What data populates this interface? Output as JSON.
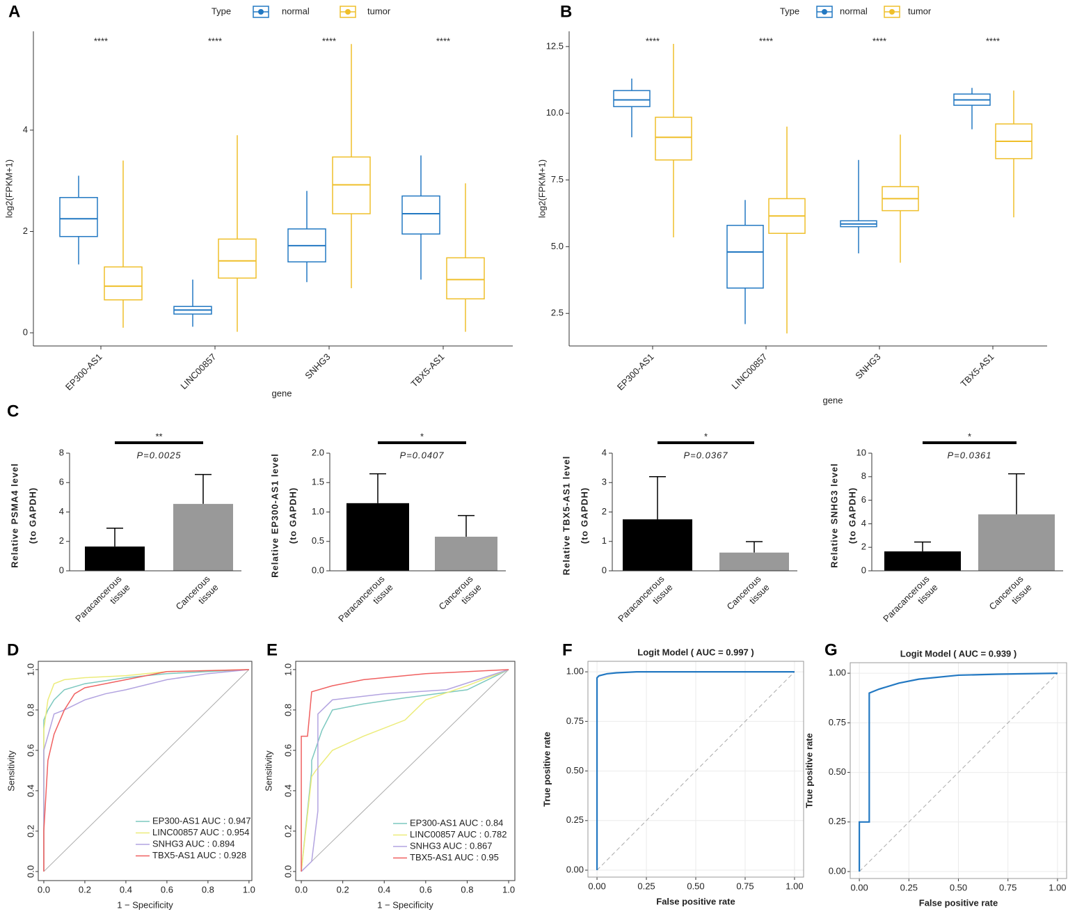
{
  "chart_data": [
    {
      "type": "box",
      "panel": "A",
      "legend_title": "Type",
      "xlabel": "gene",
      "ylabel": "log2(FPKM+1)",
      "categories": [
        "EP300-AS1",
        "LINC00857",
        "SNHG3",
        "TBX5-AS1"
      ],
      "significance": [
        "****",
        "****",
        "****",
        "****"
      ],
      "series": [
        {
          "name": "normal",
          "color": "#2278c2",
          "boxes": [
            {
              "min": 1.35,
              "q1": 1.9,
              "median": 2.25,
              "q3": 2.67,
              "max": 3.1
            },
            {
              "min": 0.12,
              "q1": 0.37,
              "median": 0.45,
              "q3": 0.52,
              "max": 1.05
            },
            {
              "min": 1.0,
              "q1": 1.4,
              "median": 1.72,
              "q3": 2.05,
              "max": 2.8
            },
            {
              "min": 1.05,
              "q1": 1.95,
              "median": 2.35,
              "q3": 2.7,
              "max": 3.5
            }
          ]
        },
        {
          "name": "tumor",
          "color": "#efbf2a",
          "boxes": [
            {
              "min": 0.1,
              "q1": 0.65,
              "median": 0.92,
              "q3": 1.3,
              "max": 3.4
            },
            {
              "min": 0.02,
              "q1": 1.08,
              "median": 1.42,
              "q3": 1.85,
              "max": 3.9
            },
            {
              "min": 0.88,
              "q1": 2.35,
              "median": 2.92,
              "q3": 3.47,
              "max": 5.7
            },
            {
              "min": 0.02,
              "q1": 0.67,
              "median": 1.05,
              "q3": 1.48,
              "max": 2.95
            }
          ]
        }
      ],
      "ylim": [
        -0.26,
        5.95
      ],
      "yticks": [
        0,
        2,
        4
      ]
    },
    {
      "type": "box",
      "panel": "B",
      "legend_title": "Type",
      "xlabel": "gene",
      "ylabel": "log2(FPKM+1)",
      "categories": [
        "EP300-AS1",
        "LINC00857",
        "SNHG3",
        "TBX5-AS1"
      ],
      "significance": [
        "****",
        "****",
        "****",
        "****"
      ],
      "series": [
        {
          "name": "normal",
          "color": "#2278c2",
          "boxes": [
            {
              "min": 9.1,
              "q1": 10.25,
              "median": 10.5,
              "q3": 10.85,
              "max": 11.3
            },
            {
              "min": 2.1,
              "q1": 3.45,
              "median": 4.8,
              "q3": 5.8,
              "max": 6.75
            },
            {
              "min": 4.75,
              "q1": 5.75,
              "median": 5.85,
              "q3": 5.97,
              "max": 8.25
            },
            {
              "min": 9.4,
              "q1": 10.3,
              "median": 10.5,
              "q3": 10.72,
              "max": 10.95
            }
          ]
        },
        {
          "name": "tumor",
          "color": "#efbf2a",
          "boxes": [
            {
              "min": 5.35,
              "q1": 8.25,
              "median": 9.1,
              "q3": 9.85,
              "max": 12.6
            },
            {
              "min": 1.75,
              "q1": 5.5,
              "median": 6.15,
              "q3": 6.8,
              "max": 9.5
            },
            {
              "min": 4.4,
              "q1": 6.35,
              "median": 6.8,
              "q3": 7.25,
              "max": 9.2
            },
            {
              "min": 6.1,
              "q1": 8.3,
              "median": 8.95,
              "q3": 9.6,
              "max": 10.85
            }
          ]
        }
      ],
      "ylim": [
        1.28,
        13.07
      ],
      "yticks": [
        2.5,
        {
          "value": 5,
          "label": "5.0"
        },
        7.5,
        {
          "value": 10,
          "label": "10.0"
        },
        12.5
      ]
    },
    {
      "type": "bar",
      "panel": "C",
      "ylabel": [
        "Relative PSMA4 level",
        "(to GAPDH)"
      ],
      "categories": [
        [
          "Paracancerous",
          "tissue"
        ],
        [
          "Cancerous",
          "tissue"
        ]
      ],
      "values": [
        1.65,
        4.55
      ],
      "errors": [
        1.25,
        2.0
      ],
      "colors": [
        "#000000",
        "#999999"
      ],
      "significance": "**",
      "p_label": "P=0.0025",
      "ylim": [
        0,
        8
      ],
      "yticks": [
        0,
        2,
        4,
        6,
        8
      ]
    },
    {
      "type": "bar",
      "ylabel": [
        "Relative EP300-AS1 level",
        "(to GAPDH)"
      ],
      "categories": [
        [
          "Paracancerous",
          "tissue"
        ],
        [
          "Cancerous",
          "tissue"
        ]
      ],
      "values": [
        1.15,
        0.58
      ],
      "errors": [
        0.5,
        0.36
      ],
      "colors": [
        "#000000",
        "#999999"
      ],
      "significance": "*",
      "p_label": "P=0.0407",
      "ylim": [
        0,
        2
      ],
      "yticks": [
        {
          "value": 0,
          "label": "0.0"
        },
        0.5,
        {
          "value": 1,
          "label": "1.0"
        },
        1.5,
        {
          "value": 2,
          "label": "2.0"
        }
      ]
    },
    {
      "type": "bar",
      "ylabel": [
        "Relative TBX5-AS1 level",
        "(to GAPDH)"
      ],
      "categories": [
        [
          "Paracancerous",
          "tissue"
        ],
        [
          "Cancerous",
          "tissue"
        ]
      ],
      "values": [
        1.75,
        0.62
      ],
      "errors": [
        1.45,
        0.37
      ],
      "colors": [
        "#000000",
        "#999999"
      ],
      "significance": "*",
      "p_label": "P=0.0367",
      "ylim": [
        0,
        4
      ],
      "yticks": [
        0,
        1,
        2,
        3,
        4
      ]
    },
    {
      "type": "bar",
      "ylabel": [
        "Relative SNHG3 level",
        "(to GAPDH)"
      ],
      "categories": [
        [
          "Paracancerous",
          "tissue"
        ],
        [
          "Cancerous",
          "tissue"
        ]
      ],
      "values": [
        1.65,
        4.8
      ],
      "errors": [
        0.8,
        3.45
      ],
      "colors": [
        "#000000",
        "#999999"
      ],
      "significance": "*",
      "p_label": "P=0.0361",
      "ylim": [
        0,
        10
      ],
      "yticks": [
        0,
        2,
        4,
        6,
        8,
        10
      ]
    },
    {
      "type": "roc",
      "panel": "D",
      "xlabel": "1 − Specificity",
      "ylabel": "Sensitivity",
      "grid": false,
      "series": [
        {
          "name": "EP300-AS1 AUC : 0.947",
          "color": "#7cc8bf",
          "x": [
            0,
            0,
            0.02,
            0.05,
            0.1,
            0.2,
            0.4,
            0.6,
            0.8,
            1
          ],
          "values": [
            0,
            0.75,
            0.8,
            0.85,
            0.9,
            0.93,
            0.96,
            0.98,
            0.99,
            1
          ]
        },
        {
          "name": "LINC00857 AUC : 0.954",
          "color": "#ecec7a",
          "x": [
            0,
            0,
            0.02,
            0.05,
            0.1,
            0.2,
            0.4,
            0.6,
            1
          ],
          "values": [
            0,
            0.7,
            0.85,
            0.93,
            0.95,
            0.96,
            0.97,
            0.99,
            1
          ]
        },
        {
          "name": "SNHG3 AUC : 0.894",
          "color": "#b2a3e0",
          "x": [
            0,
            0,
            0.05,
            0.1,
            0.2,
            0.3,
            0.4,
            0.6,
            0.8,
            1
          ],
          "values": [
            0,
            0.6,
            0.78,
            0.8,
            0.85,
            0.88,
            0.9,
            0.95,
            0.98,
            1
          ]
        },
        {
          "name": "TBX5-AS1 AUC : 0.928",
          "color": "#f06060",
          "x": [
            0,
            0,
            0.02,
            0.05,
            0.1,
            0.15,
            0.2,
            0.4,
            0.6,
            1
          ],
          "values": [
            0,
            0.2,
            0.55,
            0.68,
            0.8,
            0.88,
            0.91,
            0.95,
            0.99,
            1
          ]
        }
      ],
      "xlim": [
        -0.027,
        1.014
      ],
      "ylim": [
        -0.045,
        1.041
      ],
      "xticks": [
        {
          "value": 0,
          "label": "0.0"
        },
        0.2,
        0.4,
        0.6,
        0.8,
        {
          "value": 1,
          "label": "1.0"
        }
      ],
      "yticks": [
        {
          "value": 0,
          "label": "0.0"
        },
        0.2,
        0.4,
        0.6,
        0.8,
        {
          "value": 1,
          "label": "1.0"
        }
      ]
    },
    {
      "type": "roc",
      "panel": "E",
      "xlabel": "1 − Specificity",
      "ylabel": "Sensitivity",
      "grid": false,
      "series": [
        {
          "name": "EP300-AS1 AUC : 0.84",
          "color": "#7cc8bf",
          "x": [
            0,
            0.05,
            0.05,
            0.1,
            0.15,
            0.3,
            0.5,
            0.8,
            1
          ],
          "values": [
            0,
            0.5,
            0.55,
            0.7,
            0.8,
            0.83,
            0.86,
            0.9,
            1
          ]
        },
        {
          "name": "LINC00857 AUC : 0.782",
          "color": "#ecec7a",
          "x": [
            0,
            0.05,
            0.07,
            0.15,
            0.3,
            0.5,
            0.6,
            0.8,
            1
          ],
          "values": [
            0,
            0.47,
            0.5,
            0.6,
            0.67,
            0.75,
            0.85,
            0.92,
            1
          ]
        },
        {
          "name": "SNHG3 AUC : 0.867",
          "color": "#b2a3e0",
          "x": [
            0,
            0.05,
            0.08,
            0.08,
            0.15,
            0.4,
            0.7,
            1
          ],
          "values": [
            0,
            0.05,
            0.3,
            0.78,
            0.85,
            0.88,
            0.9,
            1
          ]
        },
        {
          "name": "TBX5-AS1 AUC : 0.95",
          "color": "#f06060",
          "x": [
            0,
            0,
            0.03,
            0.05,
            0.15,
            0.3,
            0.6,
            1
          ],
          "values": [
            0,
            0.67,
            0.67,
            0.89,
            0.92,
            0.95,
            0.98,
            1
          ]
        }
      ],
      "xlim": [
        -0.027,
        1.03
      ],
      "ylim": [
        -0.045,
        1.041
      ],
      "xticks": [
        {
          "value": 0,
          "label": "0.0"
        },
        0.2,
        0.4,
        0.6,
        0.8,
        {
          "value": 1,
          "label": "1.0"
        }
      ],
      "yticks": [
        {
          "value": 0,
          "label": "0.0"
        },
        0.2,
        0.4,
        0.6,
        0.8,
        {
          "value": 1,
          "label": "1.0"
        }
      ]
    },
    {
      "type": "roc",
      "panel": "F",
      "title": "Logit Model ( AUC = 0.997 )",
      "xlabel": "False positive rate",
      "ylabel": "True positive rate",
      "grid": true,
      "series": [
        {
          "color": "#2278c2",
          "x": [
            0,
            0,
            0.01,
            0.05,
            0.1,
            0.2,
            1
          ],
          "values": [
            0,
            0.97,
            0.98,
            0.99,
            0.995,
            1,
            1
          ]
        }
      ],
      "xlim": [
        -0.046,
        1.046
      ],
      "ylim": [
        -0.035,
        1.053
      ],
      "xticks": [
        {
          "value": 0,
          "label": "0.00"
        },
        0.25,
        {
          "value": 0.5,
          "label": "0.50"
        },
        0.75,
        {
          "value": 1,
          "label": "1.00"
        }
      ],
      "yticks": [
        {
          "value": 0,
          "label": "0.00"
        },
        0.25,
        {
          "value": 0.5,
          "label": "0.50"
        },
        0.75,
        {
          "value": 1,
          "label": "1.00"
        }
      ]
    },
    {
      "type": "roc",
      "panel": "G",
      "title": "Logit Model ( AUC = 0.939 )",
      "xlabel": "False positive rate",
      "ylabel": "True positive rate",
      "grid": true,
      "series": [
        {
          "color": "#2278c2",
          "x": [
            0,
            0,
            0.05,
            0.05,
            0.1,
            0.2,
            0.3,
            0.5,
            0.7,
            1
          ],
          "values": [
            0,
            0.25,
            0.25,
            0.9,
            0.92,
            0.95,
            0.97,
            0.99,
            0.995,
            1
          ]
        }
      ],
      "xlim": [
        -0.046,
        1.046
      ],
      "ylim": [
        -0.035,
        1.053
      ],
      "xticks": [
        {
          "value": 0,
          "label": "0.00"
        },
        0.25,
        {
          "value": 0.5,
          "label": "0.50"
        },
        0.75,
        {
          "value": 1,
          "label": "1.00"
        }
      ],
      "yticks": [
        {
          "value": 0,
          "label": "0.00"
        },
        0.25,
        {
          "value": 0.5,
          "label": "0.50"
        },
        0.75,
        {
          "value": 1,
          "label": "1.00"
        }
      ]
    }
  ]
}
